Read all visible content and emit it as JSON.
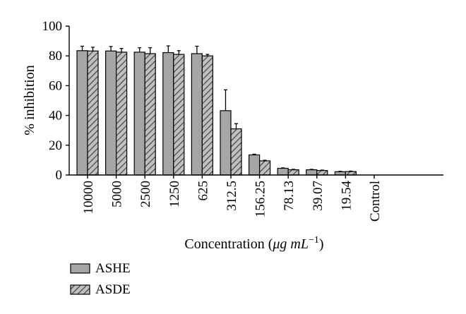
{
  "chart_data": {
    "type": "bar",
    "xlabel": "Concentration (",
    "xlabel_unit": "μg mL",
    "xlabel_exp": "−1",
    "xlabel_close": ")",
    "ylabel": "% inhibition",
    "ylim": [
      0,
      100
    ],
    "yticks": [
      "0",
      "20",
      "40",
      "60",
      "80",
      "100"
    ],
    "categories": [
      "10000",
      "5000",
      "2500",
      "1250",
      "625",
      "312.5",
      "156.25",
      "78.13",
      "39.07",
      "19.54",
      "Control"
    ],
    "series": [
      {
        "name": "ASHE",
        "values": [
          83.5,
          83.3,
          82.5,
          82.2,
          81.5,
          43.2,
          13.5,
          4.5,
          3.5,
          2.2,
          0
        ],
        "errors": [
          3.0,
          3.0,
          3.0,
          4.5,
          5.0,
          14.0,
          0.5,
          0.3,
          0.3,
          0.3,
          0
        ]
      },
      {
        "name": "ASDE",
        "values": [
          83.3,
          82.5,
          81.5,
          81.0,
          80.0,
          31.0,
          9.5,
          3.5,
          3.0,
          2.3,
          0
        ],
        "errors": [
          2.5,
          2.5,
          4.0,
          2.5,
          1.0,
          3.5,
          0.4,
          0.3,
          0.3,
          0.3,
          0
        ]
      }
    ],
    "legend_position": "bottom-left",
    "grid": false,
    "colors": {
      "solid_fill": "#a6a6a6",
      "hatch_fill": "#bfbfbf",
      "hatch_line": "#3a3a3a",
      "axis": "#000000"
    }
  }
}
